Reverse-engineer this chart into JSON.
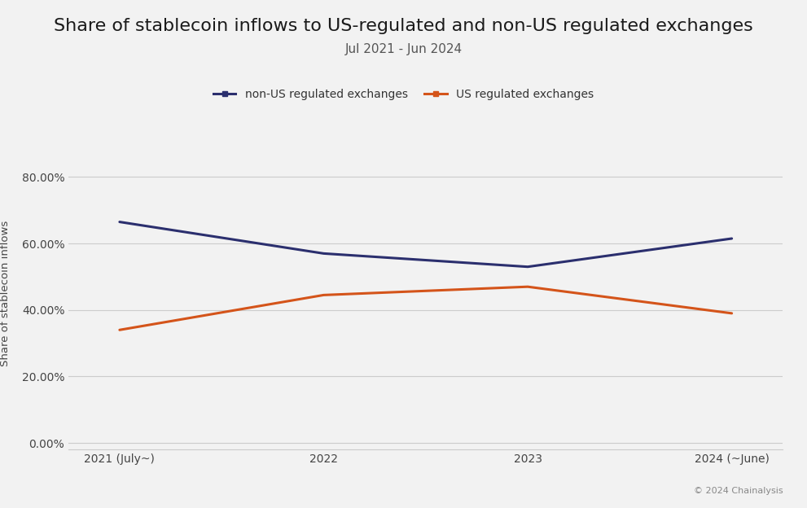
{
  "title": "Share of stablecoin inflows to US-regulated and non-US regulated exchanges",
  "subtitle": "Jul 2021 - Jun 2024",
  "xlabel": "",
  "ylabel": "Share of stablecoin inflows",
  "x_labels": [
    "2021 (July~)",
    "2022",
    "2023",
    "2024 (~June)"
  ],
  "non_us": [
    0.665,
    0.57,
    0.53,
    0.615
  ],
  "us": [
    0.34,
    0.445,
    0.47,
    0.39
  ],
  "non_us_color": "#2b2f6e",
  "us_color": "#d4541a",
  "background_color": "#f2f2f2",
  "plot_bg_color": "#f2f2f2",
  "grid_color": "#cccccc",
  "yticks": [
    0.0,
    0.2,
    0.4,
    0.6,
    0.8
  ],
  "ylim": [
    -0.02,
    0.92
  ],
  "legend_non_us": "non-US regulated exchanges",
  "legend_us": "US regulated exchanges",
  "title_fontsize": 16,
  "subtitle_fontsize": 11,
  "axis_label_fontsize": 9.5,
  "tick_fontsize": 10,
  "legend_fontsize": 10,
  "copyright_text": "© 2024 Chainalysis",
  "line_width": 2.2
}
